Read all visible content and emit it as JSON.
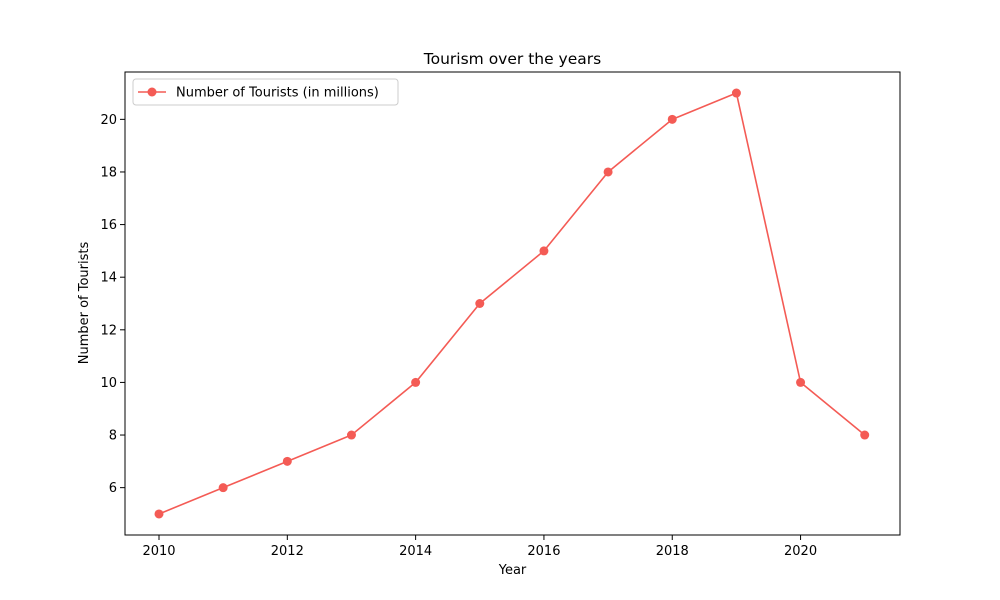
{
  "colors": {
    "series": "#f45b55",
    "axis": "#000000",
    "background": "#ffffff",
    "legend_border": "#cccccc"
  },
  "chart_data": {
    "type": "line",
    "title": "Tourism over the years",
    "xlabel": "Year",
    "ylabel": "Number of Tourists",
    "xlim": [
      2009.47,
      2021.55
    ],
    "ylim": [
      4.2,
      21.8
    ],
    "xticks": [
      2010,
      2012,
      2014,
      2016,
      2018,
      2020
    ],
    "yticks": [
      6,
      8,
      10,
      12,
      14,
      16,
      18,
      20
    ],
    "grid": false,
    "legend_position": "upper-left",
    "series": [
      {
        "name": "Number of Tourists (in millions)",
        "marker": "circle",
        "x": [
          2010,
          2011,
          2012,
          2013,
          2014,
          2015,
          2016,
          2017,
          2018,
          2019,
          2020,
          2021
        ],
        "y": [
          5,
          6,
          7,
          8,
          10,
          13,
          15,
          18,
          20,
          21,
          10,
          8
        ]
      }
    ]
  }
}
